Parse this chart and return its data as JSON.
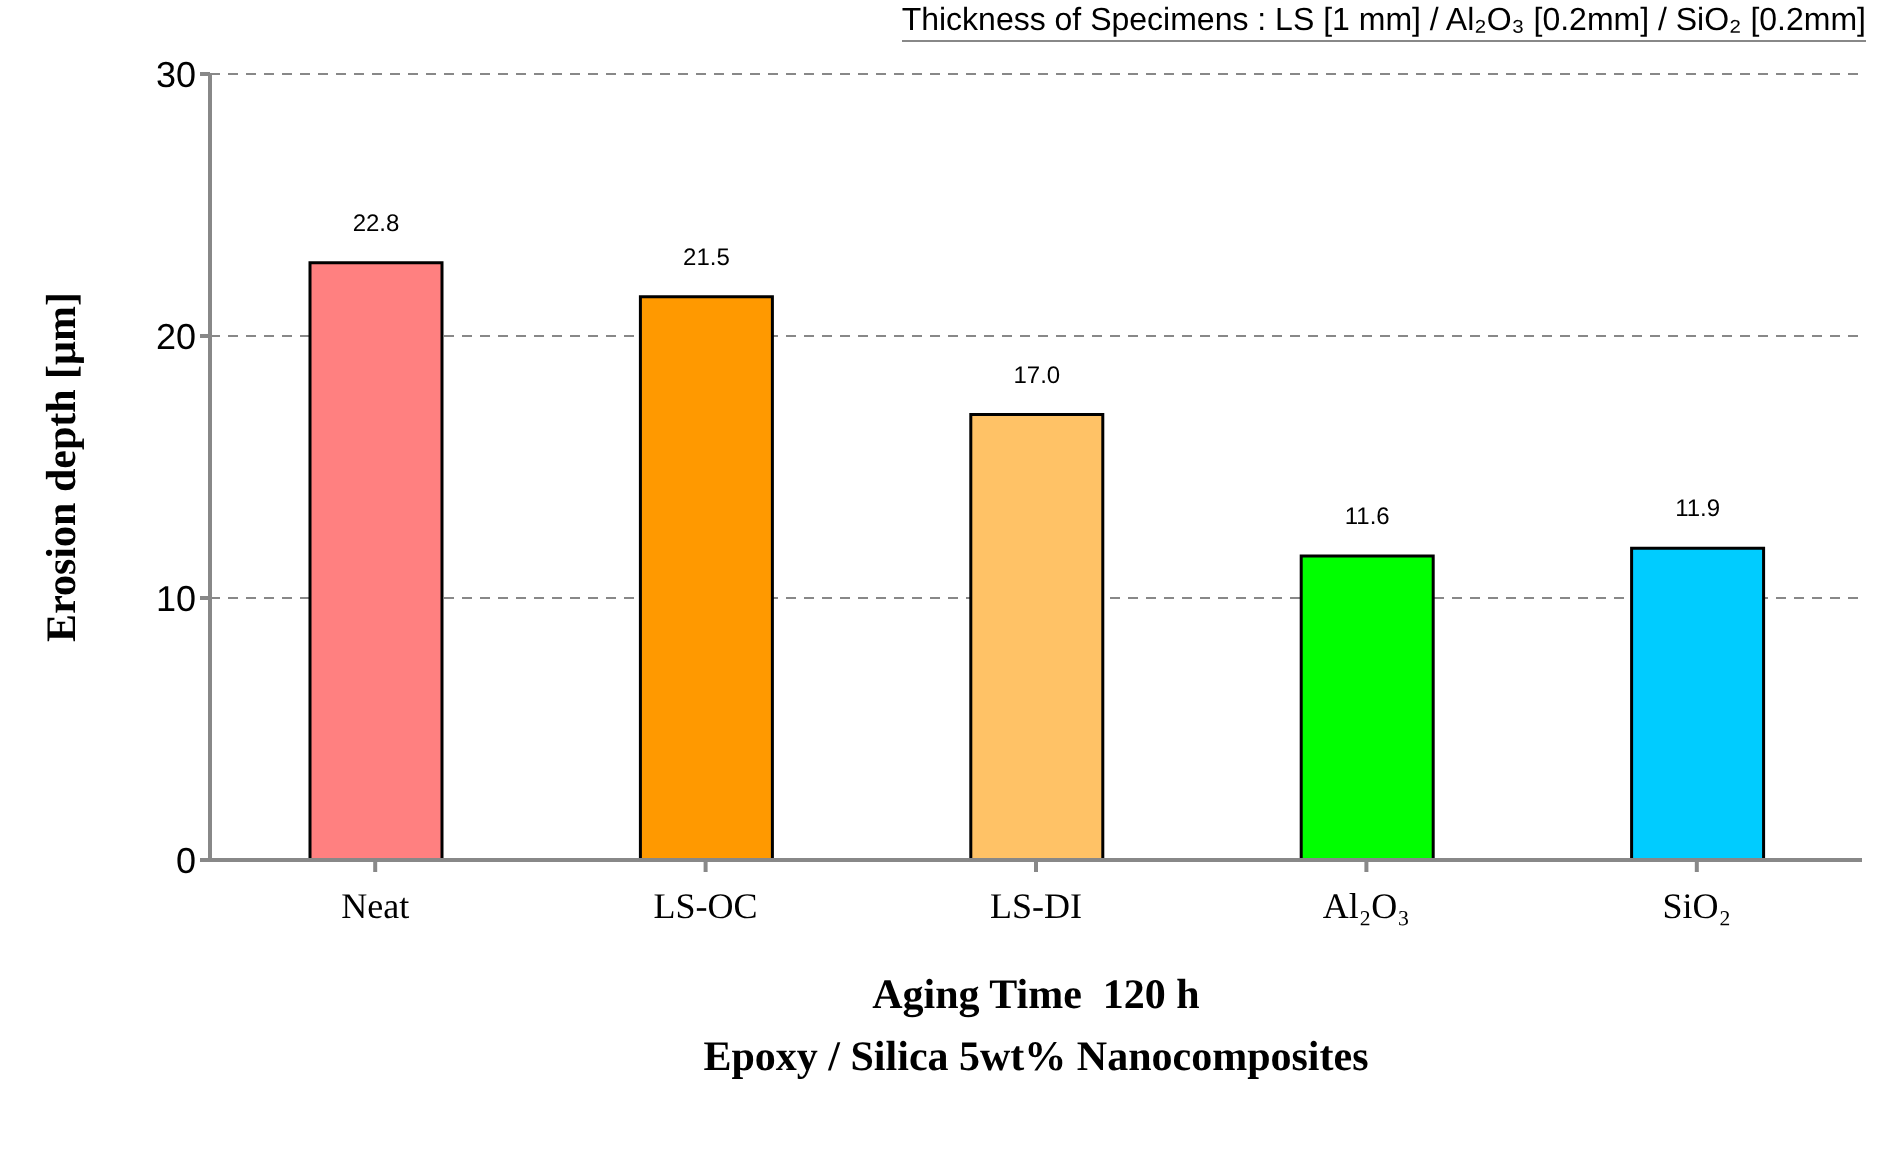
{
  "chart_data": {
    "type": "bar",
    "categories": [
      "Neat",
      "LS-OC",
      "LS-DI",
      "Al₂O₃",
      "SiO₂"
    ],
    "values": [
      22.8,
      21.5,
      17.0,
      11.6,
      11.9
    ],
    "colors": [
      "#ff8080",
      "#ff9900",
      "#ffc266",
      "#00ff00",
      "#00ccff"
    ],
    "ylim": [
      0,
      30
    ],
    "yticks": [
      0,
      10,
      20,
      30
    ],
    "grid": "y",
    "value_labels": [
      "22.8",
      "21.5",
      "17.0",
      "11.6",
      "11.9"
    ],
    "ylabel": "Erosion depth [μm]",
    "xlabel": "Aging Time  120 h",
    "annotations": [
      "Thickness of Specimens : LS [1 mm] / Al₂O₃ [0.2mm] / SiO₂ [0.2mm]",
      "Epoxy / Silica 5wt% Nanocomposites"
    ]
  }
}
